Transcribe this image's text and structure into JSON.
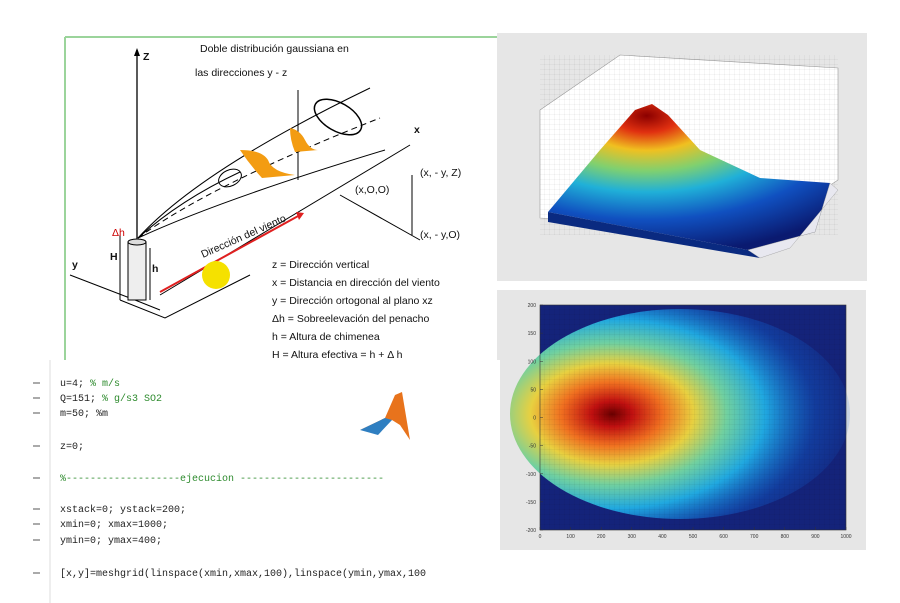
{
  "diagram": {
    "title": [
      "Doble distribución gaussiana en",
      "las direcciones y - z"
    ],
    "z_label": "Z",
    "x_label": "x",
    "y_label": "y",
    "dh_label": "Δh",
    "H_label": "H",
    "h_label": "h",
    "wind_label": "Dirección del viento",
    "points": [
      "(x, - y, Z)",
      "(x,O,O)",
      "(x, - y,O)"
    ],
    "legend": [
      "z = Dirección vertical",
      "x = Distancia en dirección del viento",
      "y = Dirección ortogonal al plano xz",
      "Δh = Sobreelevación del penacho",
      "h = Altura de chimenea",
      "H = Altura efectiva = h + Δ h"
    ]
  },
  "heatmap": {
    "xticks": [
      0,
      100,
      200,
      300,
      400,
      500,
      600,
      700,
      800,
      900,
      1000
    ],
    "yticks": [
      200,
      150,
      100,
      50,
      0,
      -50,
      -100,
      -150,
      -200
    ]
  },
  "code": {
    "lines": [
      {
        "code": "u=4;",
        "comment": "% m/s"
      },
      {
        "code": "Q=151;",
        "comment": "% g/s3 SO2"
      },
      {
        "code": "m=50; %m"
      },
      {
        "code": "z=0;"
      },
      {
        "comment": "%-------------------ejecucion ------------------------"
      },
      {
        "code": "xstack=0; ystack=200;"
      },
      {
        "code": "xmin=0; xmax=1000;"
      },
      {
        "code": "ymin=0; ymax=400;"
      },
      {
        "code": "[x,y]=meshgrid(linspace(xmin,xmax,100),linspace(ymin,ymax,100"
      }
    ]
  }
}
